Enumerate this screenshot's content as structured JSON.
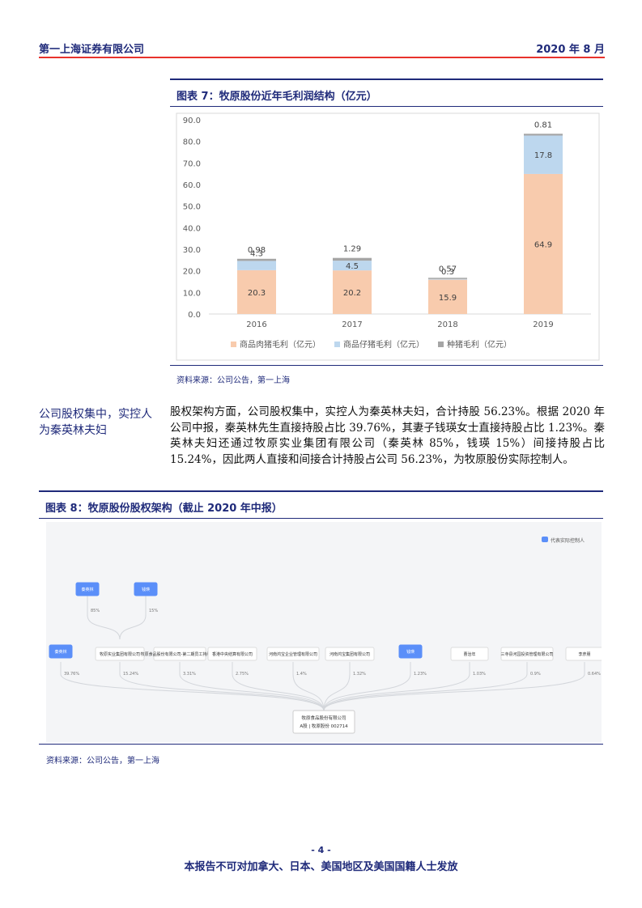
{
  "header": {
    "company": "第一上海证券有限公司",
    "date": "2020 年 8 月"
  },
  "figure7": {
    "title": "图表 7：牧原股份近年毛利润结构（亿元）",
    "source": "资料来源：公司公告，第一上海"
  },
  "chart_data": {
    "type": "bar",
    "stacked": true,
    "categories": [
      "2016",
      "2017",
      "2018",
      "2019"
    ],
    "series": [
      {
        "name": "商品肉猪毛利（亿元）",
        "color": "#f8cbad",
        "values": [
          20.3,
          20.2,
          15.9,
          64.9
        ]
      },
      {
        "name": "商品仔猪毛利（亿元）",
        "color": "#bdd7ee",
        "values": [
          4.3,
          4.5,
          0.3,
          17.8
        ]
      },
      {
        "name": "种猪毛利（亿元）",
        "color": "#a5a5a5",
        "values": [
          0.98,
          1.29,
          0.57,
          0.81
        ]
      }
    ],
    "ylim": [
      0,
      90
    ],
    "yticks": [
      {
        "value": 0,
        "label": "0.0"
      },
      {
        "value": 10,
        "label": "10.0"
      },
      {
        "value": 20,
        "label": "20.0"
      },
      {
        "value": 30,
        "label": "30.0"
      },
      {
        "value": 40,
        "label": "40.0"
      },
      {
        "value": 50,
        "label": "50.0"
      },
      {
        "value": 60,
        "label": "60.0"
      },
      {
        "value": 70,
        "label": "70.0"
      },
      {
        "value": 80,
        "label": "80.0"
      },
      {
        "value": 90,
        "label": "90.0"
      }
    ],
    "grid": false,
    "legend": "bottom"
  },
  "section": {
    "side_note": "公司股权集中，实控人为秦英林夫妇",
    "paragraph": "股权架构方面，公司股权集中，实控人为秦英林夫妇，合计持股 56.23%。根据 2020 年公司中报，秦英林先生直接持股占比 39.76%，其妻子钱瑛女士直接持股占比 1.23%。秦英林夫妇还通过牧原实业集团有限公司（秦英林 85%，钱瑛 15%）间接持股占比 15.24%，因此两人直接和间接合计持股占公司 56.23%，为牧原股份实际控制人。"
  },
  "figure8": {
    "title": "图表 8：牧原股份股权架构（截止 2020 年中报）",
    "source": "资料来源：公司公告，第一上海"
  },
  "diagram": {
    "legend": "代表实际控制人",
    "legend_color": "#5b8ff9",
    "top": [
      {
        "label": "秦英林",
        "pct": "85%"
      },
      {
        "label": "钱瑛",
        "pct": "15%"
      }
    ],
    "nodes": [
      {
        "label": "秦英林",
        "pct": "39.76%",
        "color": "#5b8ff9"
      },
      {
        "label": "牧原实业集团有限公司",
        "pct": "15.24%",
        "color": "#ffffff"
      },
      {
        "label": "牧原食品股份有限公司-第二期员工持股计划",
        "pct": "3.31%",
        "color": "#ffffff"
      },
      {
        "label": "香港中央结算有限公司",
        "pct": "2.75%",
        "color": "#ffffff"
      },
      {
        "label": "河南鸿宝企业管理有限公司",
        "pct": "1.4%",
        "color": "#ffffff"
      },
      {
        "label": "河南鸿宝集团有限公司",
        "pct": "1.32%",
        "color": "#ffffff"
      },
      {
        "label": "钱瑛",
        "pct": "1.23%",
        "color": "#5b8ff9"
      },
      {
        "label": "曹治年",
        "pct": "1.03%",
        "color": "#ffffff"
      },
      {
        "label": "三寺县河园投资管理有限公司",
        "pct": "0.9%",
        "color": "#ffffff"
      },
      {
        "label": "李彦朋",
        "pct": "0.64%",
        "color": "#ffffff"
      }
    ],
    "center": {
      "name": "牧原食品股份有限公司",
      "code": "A股 | 牧原股份 002714"
    }
  },
  "footer": {
    "page": "- 4 -",
    "notice": "本报告不可对加拿大、日本、美国地区及美国国籍人士发放"
  }
}
